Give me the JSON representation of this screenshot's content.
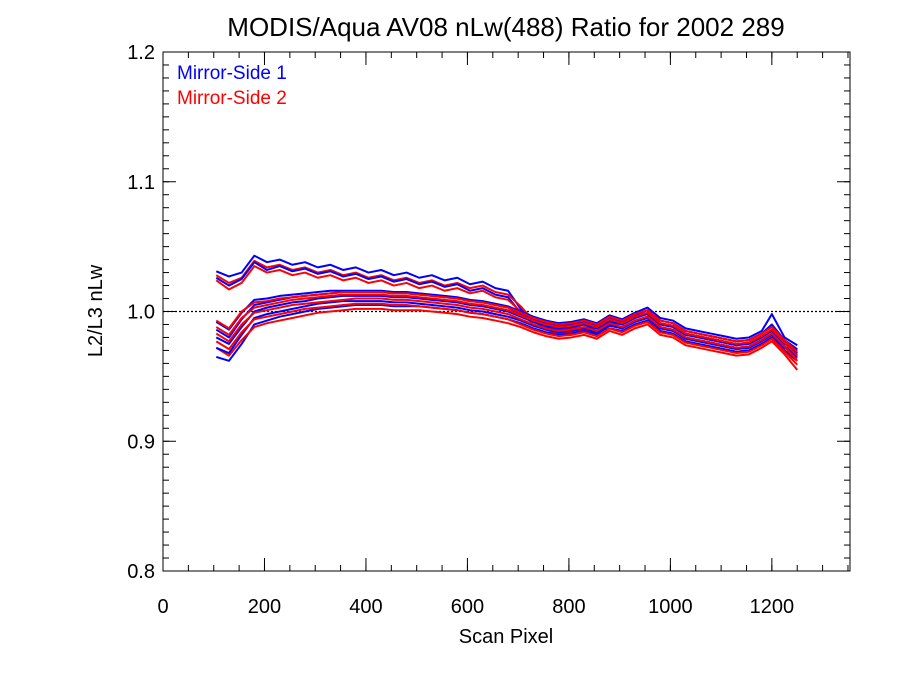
{
  "chart_data": {
    "type": "line",
    "title": "MODIS/Aqua AV08 nLw(488) Ratio for 2002 289",
    "xlabel": "Scan Pixel",
    "ylabel": "L2/L3 nLw",
    "xlim": [
      0,
      1354
    ],
    "ylim": [
      0.8,
      1.2
    ],
    "x_ticks": [
      0,
      200,
      400,
      600,
      800,
      1000,
      1200
    ],
    "x_tick_labels": [
      "0",
      "200",
      "400",
      "600",
      "800",
      "1000",
      "1200"
    ],
    "y_ticks": [
      0.8,
      0.9,
      1.0,
      1.1,
      1.2
    ],
    "y_tick_labels": [
      "0.8",
      "0.9",
      "1.0",
      "1.1",
      "1.2"
    ],
    "reference_line": {
      "y": 1.0,
      "style": "dotted"
    },
    "grid": false,
    "legend": {
      "placement": "top-left"
    },
    "x": [
      105,
      130,
      155,
      180,
      205,
      230,
      255,
      280,
      305,
      330,
      355,
      380,
      405,
      430,
      455,
      480,
      505,
      530,
      555,
      580,
      605,
      630,
      655,
      680,
      705,
      730,
      755,
      780,
      805,
      830,
      855,
      880,
      905,
      930,
      955,
      980,
      1005,
      1030,
      1055,
      1080,
      1105,
      1130,
      1155,
      1180,
      1200,
      1225,
      1250
    ],
    "series": [
      {
        "name": "Mirror-Side 1",
        "color": "#0000ff",
        "values": [
          [
            1.031,
            1.027,
            1.03,
            1.043,
            1.038,
            1.04,
            1.036,
            1.038,
            1.034,
            1.036,
            1.032,
            1.034,
            1.03,
            1.032,
            1.028,
            1.03,
            1.026,
            1.028,
            1.024,
            1.026,
            1.021,
            1.023,
            1.018,
            1.016,
            1.002,
            0.995,
            0.99,
            0.987,
            0.988,
            0.99,
            0.985,
            0.992,
            0.99,
            0.995,
            0.998,
            0.99,
            0.988,
            0.982,
            0.98,
            0.978,
            0.976,
            0.974,
            0.975,
            0.98,
            0.985,
            0.975,
            0.97
          ],
          [
            1.026,
            1.02,
            1.025,
            1.038,
            1.032,
            1.035,
            1.031,
            1.033,
            1.029,
            1.031,
            1.027,
            1.029,
            1.025,
            1.027,
            1.023,
            1.025,
            1.021,
            1.023,
            1.019,
            1.021,
            1.016,
            1.018,
            1.013,
            1.011,
            0.999,
            0.992,
            0.988,
            0.985,
            0.986,
            0.987,
            0.983,
            0.989,
            0.987,
            0.992,
            0.995,
            0.987,
            0.985,
            0.979,
            0.977,
            0.975,
            0.973,
            0.971,
            0.972,
            0.977,
            0.982,
            0.972,
            0.967
          ],
          [
            0.965,
            0.962,
            0.975,
            0.99,
            0.993,
            0.996,
            0.998,
            1.0,
            1.002,
            1.003,
            1.004,
            1.005,
            1.005,
            1.005,
            1.004,
            1.004,
            1.004,
            1.003,
            1.002,
            1.001,
            0.999,
            0.998,
            0.996,
            0.994,
            0.991,
            0.987,
            0.984,
            0.982,
            0.983,
            0.985,
            0.982,
            0.987,
            0.985,
            0.99,
            0.993,
            0.985,
            0.983,
            0.977,
            0.975,
            0.973,
            0.971,
            0.969,
            0.97,
            0.975,
            0.98,
            0.97,
            0.962
          ],
          [
            0.972,
            0.968,
            0.982,
            0.995,
            0.998,
            1.0,
            1.002,
            1.004,
            1.006,
            1.007,
            1.008,
            1.008,
            1.008,
            1.008,
            1.007,
            1.007,
            1.006,
            1.005,
            1.004,
            1.003,
            1.001,
            1.0,
            0.998,
            0.996,
            0.993,
            0.989,
            0.986,
            0.984,
            0.985,
            0.987,
            0.984,
            0.99,
            0.987,
            0.992,
            0.996,
            0.988,
            0.986,
            0.98,
            0.978,
            0.976,
            0.974,
            0.972,
            0.973,
            0.978,
            0.983,
            0.973,
            0.965
          ],
          [
            0.98,
            0.975,
            0.988,
            1.0,
            1.003,
            1.005,
            1.007,
            1.008,
            1.01,
            1.011,
            1.012,
            1.012,
            1.012,
            1.012,
            1.011,
            1.011,
            1.01,
            1.009,
            1.008,
            1.007,
            1.005,
            1.004,
            1.002,
            1.0,
            0.996,
            0.992,
            0.989,
            0.987,
            0.988,
            0.99,
            0.987,
            0.993,
            0.99,
            0.995,
            0.999,
            0.991,
            0.989,
            0.983,
            0.981,
            0.979,
            0.977,
            0.975,
            0.976,
            0.981,
            0.986,
            0.976,
            0.968
          ],
          [
            0.986,
            0.98,
            0.994,
            1.005,
            1.007,
            1.009,
            1.011,
            1.012,
            1.013,
            1.014,
            1.015,
            1.015,
            1.015,
            1.015,
            1.014,
            1.014,
            1.013,
            1.012,
            1.011,
            1.01,
            1.008,
            1.007,
            1.005,
            1.003,
            0.998,
            0.994,
            0.991,
            0.989,
            0.99,
            0.992,
            0.989,
            0.995,
            0.992,
            0.997,
            1.001,
            0.993,
            0.991,
            0.985,
            0.983,
            0.981,
            0.979,
            0.977,
            0.978,
            0.983,
            0.99,
            0.978,
            0.971
          ],
          [
            0.992,
            0.986,
            0.999,
            1.009,
            1.01,
            1.012,
            1.013,
            1.014,
            1.015,
            1.016,
            1.016,
            1.016,
            1.016,
            1.016,
            1.015,
            1.015,
            1.014,
            1.013,
            1.012,
            1.011,
            1.009,
            1.008,
            1.006,
            1.004,
            1.0,
            0.996,
            0.993,
            0.991,
            0.992,
            0.994,
            0.991,
            0.997,
            0.994,
            0.999,
            1.003,
            0.995,
            0.993,
            0.987,
            0.985,
            0.983,
            0.981,
            0.979,
            0.98,
            0.985,
            0.998,
            0.98,
            0.974
          ]
        ]
      },
      {
        "name": "Mirror-Side 2",
        "color": "#ff0000",
        "values": [
          [
            1.028,
            1.022,
            1.026,
            1.039,
            1.034,
            1.036,
            1.032,
            1.034,
            1.03,
            1.032,
            1.028,
            1.03,
            1.026,
            1.028,
            1.024,
            1.026,
            1.022,
            1.024,
            1.02,
            1.022,
            1.018,
            1.02,
            1.015,
            1.013,
            1.004,
            0.993,
            0.988,
            0.986,
            0.987,
            0.988,
            0.984,
            0.99,
            0.988,
            0.993,
            0.996,
            0.988,
            0.986,
            0.98,
            0.978,
            0.976,
            0.974,
            0.972,
            0.973,
            0.978,
            0.983,
            0.973,
            0.968
          ],
          [
            1.024,
            1.017,
            1.022,
            1.035,
            1.03,
            1.032,
            1.028,
            1.03,
            1.026,
            1.028,
            1.024,
            1.026,
            1.022,
            1.024,
            1.02,
            1.022,
            1.018,
            1.02,
            1.016,
            1.018,
            1.014,
            1.016,
            1.011,
            1.009,
            1.0,
            0.99,
            0.986,
            0.983,
            0.984,
            0.986,
            0.981,
            0.987,
            0.985,
            0.99,
            0.993,
            0.985,
            0.983,
            0.977,
            0.975,
            0.973,
            0.971,
            0.969,
            0.97,
            0.975,
            0.98,
            0.97,
            0.964
          ],
          [
            0.972,
            0.966,
            0.978,
            0.988,
            0.991,
            0.993,
            0.995,
            0.997,
            0.999,
            1.0,
            1.001,
            1.002,
            1.002,
            1.002,
            1.001,
            1.001,
            1.001,
            1.0,
            0.999,
            0.998,
            0.996,
            0.995,
            0.993,
            0.991,
            0.988,
            0.984,
            0.981,
            0.979,
            0.98,
            0.982,
            0.979,
            0.985,
            0.982,
            0.987,
            0.99,
            0.982,
            0.98,
            0.974,
            0.972,
            0.97,
            0.968,
            0.966,
            0.967,
            0.972,
            0.977,
            0.967,
            0.955
          ],
          [
            0.977,
            0.971,
            0.984,
            0.994,
            0.996,
            0.998,
            1.0,
            1.002,
            1.003,
            1.004,
            1.005,
            1.006,
            1.006,
            1.006,
            1.005,
            1.005,
            1.004,
            1.003,
            1.002,
            1.001,
            0.999,
            0.998,
            0.996,
            0.994,
            0.99,
            0.986,
            0.983,
            0.981,
            0.982,
            0.984,
            0.981,
            0.987,
            0.984,
            0.989,
            0.992,
            0.984,
            0.982,
            0.976,
            0.974,
            0.972,
            0.97,
            0.968,
            0.969,
            0.974,
            0.979,
            0.969,
            0.959
          ],
          [
            0.983,
            0.977,
            0.99,
            0.999,
            1.001,
            1.003,
            1.005,
            1.006,
            1.007,
            1.008,
            1.009,
            1.01,
            1.01,
            1.01,
            1.009,
            1.009,
            1.008,
            1.007,
            1.006,
            1.005,
            1.003,
            1.002,
            1.0,
            0.998,
            0.994,
            0.99,
            0.987,
            0.985,
            0.986,
            0.988,
            0.985,
            0.991,
            0.988,
            0.993,
            0.996,
            0.988,
            0.986,
            0.98,
            0.978,
            0.976,
            0.974,
            0.972,
            0.973,
            0.978,
            0.983,
            0.973,
            0.962
          ],
          [
            0.988,
            0.982,
            0.995,
            1.003,
            1.005,
            1.007,
            1.009,
            1.01,
            1.011,
            1.012,
            1.013,
            1.013,
            1.013,
            1.013,
            1.012,
            1.012,
            1.011,
            1.01,
            1.009,
            1.008,
            1.006,
            1.005,
            1.003,
            1.001,
            0.997,
            0.993,
            0.99,
            0.988,
            0.989,
            0.991,
            0.988,
            0.994,
            0.991,
            0.996,
            0.999,
            0.991,
            0.989,
            0.983,
            0.981,
            0.979,
            0.977,
            0.975,
            0.976,
            0.981,
            0.986,
            0.976,
            0.966
          ],
          [
            0.993,
            0.987,
            1.0,
            1.007,
            1.008,
            1.01,
            1.011,
            1.012,
            1.013,
            1.014,
            1.015,
            1.015,
            1.015,
            1.015,
            1.014,
            1.014,
            1.013,
            1.012,
            1.011,
            1.01,
            1.008,
            1.007,
            1.005,
            1.003,
            0.999,
            0.995,
            0.992,
            0.99,
            0.991,
            0.993,
            0.99,
            0.996,
            0.993,
            0.998,
            1.001,
            0.993,
            0.991,
            0.985,
            0.983,
            0.981,
            0.979,
            0.977,
            0.978,
            0.983,
            0.988,
            0.978,
            0.969
          ]
        ]
      }
    ]
  }
}
